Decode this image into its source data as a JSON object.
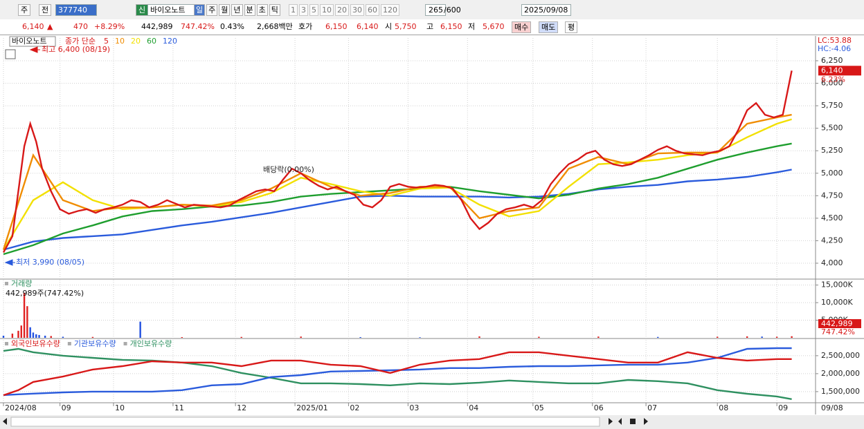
{
  "toolbar": {
    "view_type": "주",
    "prev": "전",
    "code": "377740",
    "name": "바이오노트",
    "new_badge": "신",
    "periods": [
      "일",
      "주",
      "월",
      "년",
      "분",
      "초",
      "틱"
    ],
    "intervals": [
      "1",
      "3",
      "5",
      "10",
      "20",
      "30",
      "60",
      "120"
    ],
    "count": "265",
    "max_count": "/600",
    "date": "2025/09/08"
  },
  "quote": {
    "price": "6,140",
    "arrow": "▲",
    "change": "470",
    "change_pct": "+8.29%",
    "volume": "442,989",
    "volume_ratio": "747.42%",
    "turnover": "0.43%",
    "amount": "2,668백만",
    "ask_label": "호가",
    "ask": "6,150",
    "bid": "6,140",
    "open_label": "시",
    "open": "5,750",
    "high_label": "고",
    "high": "6,150",
    "low_label": "저",
    "low": "5,670",
    "buy": "매수",
    "sell": "매도",
    "avg": "평"
  },
  "chart_data": [
    {
      "type": "line",
      "stock_name": "바이오노트",
      "legend_prefix": "종가 단순",
      "high_label": "최고 6,400 (08/19)",
      "low_label": "최저 3,990 (08/05)",
      "ex_dividend_label": "배당락(0.00%)",
      "lc_label": "LC:53.88",
      "hc_label": "HC:-4.06",
      "last_price": 6140,
      "last_price_label": "6,140",
      "last_change_label": "6.23%",
      "ylim": [
        3831,
        6503
      ],
      "yticks": [
        {
          "value": 4000,
          "label": "4,000"
        },
        {
          "value": 4250,
          "label": "4,250"
        },
        {
          "value": 4500,
          "label": "4,500"
        },
        {
          "value": 4750,
          "label": "4,750"
        },
        {
          "value": 5000,
          "label": "5,000"
        },
        {
          "value": 5250,
          "label": "5,250"
        },
        {
          "value": 5500,
          "label": "5,500"
        },
        {
          "value": 5750,
          "label": "5,750"
        },
        {
          "value": 6000,
          "label": "6,000"
        },
        {
          "value": 6250,
          "label": "6,250"
        }
      ],
      "x": [
        0,
        10,
        20,
        30,
        40,
        50,
        60,
        70,
        80,
        90,
        100,
        110,
        120,
        130,
        140,
        150,
        160,
        170,
        180,
        190,
        200,
        210,
        220,
        230,
        240,
        250,
        260,
        265
      ],
      "series": [
        {
          "name": "5",
          "color": "#d81818",
          "x": [
            0,
            3,
            5,
            7,
            9,
            11,
            13,
            16,
            19,
            22,
            25,
            28,
            31,
            34,
            37,
            40,
            43,
            46,
            49,
            52,
            55,
            58,
            61,
            64,
            67,
            70,
            73,
            76,
            79,
            82,
            85,
            88,
            91,
            94,
            97,
            100,
            103,
            106,
            109,
            112,
            115,
            118,
            121,
            124,
            127,
            130,
            133,
            136,
            139,
            142,
            145,
            148,
            151,
            154,
            157,
            160,
            163,
            166,
            169,
            172,
            175,
            178,
            181,
            184,
            187,
            190,
            193,
            196,
            199,
            202,
            205,
            208,
            211,
            214,
            217,
            220,
            223,
            226,
            229,
            232,
            235,
            238,
            241,
            244,
            247,
            250,
            253,
            256,
            259,
            262,
            265
          ],
          "values": [
            4120,
            4300,
            4800,
            5300,
            5550,
            5350,
            5050,
            4800,
            4600,
            4550,
            4580,
            4600,
            4560,
            4600,
            4620,
            4650,
            4700,
            4680,
            4620,
            4650,
            4700,
            4660,
            4620,
            4650,
            4640,
            4630,
            4620,
            4640,
            4700,
            4750,
            4800,
            4820,
            4800,
            4930,
            5050,
            5000,
            4920,
            4860,
            4820,
            4850,
            4800,
            4760,
            4650,
            4620,
            4700,
            4850,
            4880,
            4850,
            4840,
            4850,
            4870,
            4860,
            4830,
            4700,
            4500,
            4380,
            4450,
            4550,
            4600,
            4620,
            4650,
            4620,
            4700,
            4880,
            5000,
            5100,
            5150,
            5220,
            5250,
            5150,
            5100,
            5080,
            5100,
            5150,
            5200,
            5260,
            5300,
            5250,
            5220,
            5210,
            5200,
            5230,
            5250,
            5300,
            5480,
            5700,
            5780,
            5650,
            5620,
            5650,
            6140
          ]
        },
        {
          "name": "10",
          "color": "#f08c00",
          "values": [
            4150,
            5200,
            4700,
            4580,
            4620,
            4620,
            4650,
            4640,
            4700,
            4830,
            5000,
            4850,
            4750,
            4780,
            4850,
            4850,
            4500,
            4580,
            4620,
            5050,
            5180,
            5100,
            5220,
            5230,
            5230,
            5550,
            5620,
            5650
          ]
        },
        {
          "name": "20",
          "color": "#f2e000",
          "values": [
            4150,
            4700,
            4900,
            4700,
            4600,
            4620,
            4650,
            4630,
            4680,
            4780,
            4950,
            4880,
            4800,
            4750,
            4830,
            4840,
            4650,
            4520,
            4580,
            4850,
            5100,
            5120,
            5150,
            5200,
            5230,
            5400,
            5550,
            5600
          ]
        },
        {
          "name": "60",
          "color": "#1e9e2e",
          "values": [
            4100,
            4200,
            4330,
            4420,
            4520,
            4580,
            4600,
            4630,
            4640,
            4680,
            4740,
            4770,
            4790,
            4810,
            4830,
            4850,
            4800,
            4760,
            4720,
            4760,
            4830,
            4880,
            4950,
            5050,
            5150,
            5230,
            5300,
            5330
          ]
        },
        {
          "name": "120",
          "color": "#2a5bdc",
          "values": [
            4150,
            4240,
            4280,
            4300,
            4320,
            4370,
            4420,
            4460,
            4510,
            4560,
            4620,
            4680,
            4740,
            4750,
            4740,
            4740,
            4740,
            4730,
            4740,
            4770,
            4820,
            4850,
            4870,
            4910,
            4930,
            4960,
            5010,
            5040
          ]
        }
      ]
    },
    {
      "type": "bar",
      "title": "거래량",
      "info": "442,989주(747.42%)",
      "last_value_label": "442,989",
      "last_ratio_label": "747.42%",
      "ylim": [
        0,
        16500
      ],
      "yticks": [
        {
          "value": 5000,
          "label": "5,000K"
        },
        {
          "value": 10000,
          "label": "10,000K"
        },
        {
          "value": 15000,
          "label": "15,000K"
        }
      ],
      "x": [
        0,
        3,
        5,
        6,
        7,
        8,
        9,
        10,
        11,
        12,
        14,
        16,
        20,
        30,
        46,
        60,
        80,
        100,
        120,
        140,
        160,
        180,
        200,
        220,
        240,
        250,
        255,
        260,
        265
      ],
      "values": [
        600,
        1200,
        2000,
        3500,
        12800,
        9000,
        3000,
        1500,
        1000,
        800,
        600,
        500,
        300,
        250,
        4600,
        200,
        250,
        350,
        200,
        150,
        400,
        300,
        350,
        250,
        300,
        400,
        350,
        300,
        442.989
      ],
      "colors": [
        "#2050e0",
        "#e02020",
        "#e02020",
        "#e02020",
        "#e02020",
        "#e02020",
        "#2050e0",
        "#2050e0",
        "#2050e0",
        "#2050e0",
        "#2050e0",
        "#e02020",
        "#2050e0",
        "#e02020",
        "#2050e0",
        "#e02020",
        "#e02020",
        "#e02020",
        "#2050e0",
        "#2050e0",
        "#e02020",
        "#e02020",
        "#e02020",
        "#2050e0",
        "#e02020",
        "#e02020",
        "#2050e0",
        "#e02020",
        "#e02020"
      ]
    },
    {
      "type": "line",
      "ylim": [
        1210000,
        2940000
      ],
      "yticks": [
        {
          "value": 1500000,
          "label": "1,500,000"
        },
        {
          "value": 2000000,
          "label": "2,000,000"
        },
        {
          "value": 2500000,
          "label": "2,500,000"
        }
      ],
      "xlim": [
        0,
        273
      ],
      "xticks": [
        {
          "value": 0,
          "label": "2024/08"
        },
        {
          "value": 19,
          "label": "09"
        },
        {
          "value": 37,
          "label": "10"
        },
        {
          "value": 57,
          "label": "11"
        },
        {
          "value": 78,
          "label": "12"
        },
        {
          "value": 98,
          "label": "2025/01"
        },
        {
          "value": 116,
          "label": "02"
        },
        {
          "value": 136,
          "label": "03"
        },
        {
          "value": 156,
          "label": "04"
        },
        {
          "value": 178,
          "label": "05"
        },
        {
          "value": 198,
          "label": "06"
        },
        {
          "value": 216,
          "label": "07"
        },
        {
          "value": 240,
          "label": "08"
        },
        {
          "value": 260,
          "label": "09"
        }
      ],
      "x_end_label": "09/08",
      "x": [
        0,
        5,
        10,
        20,
        30,
        40,
        50,
        60,
        70,
        80,
        90,
        100,
        110,
        120,
        130,
        140,
        150,
        160,
        170,
        180,
        190,
        200,
        210,
        220,
        230,
        240,
        250,
        260,
        265
      ],
      "series": [
        {
          "name": "외국인보유수량",
          "color": "#d81818",
          "values": [
            1400000,
            1540000,
            1770000,
            1920000,
            2115000,
            2210000,
            2345000,
            2310000,
            2310000,
            2210000,
            2365000,
            2365000,
            2250000,
            2210000,
            2020000,
            2250000,
            2365000,
            2405000,
            2595000,
            2595000,
            2500000,
            2405000,
            2310000,
            2310000,
            2595000,
            2440000,
            2365000,
            2405000,
            2405000
          ]
        },
        {
          "name": "기관보유수량",
          "color": "#2a5bdc",
          "values": [
            1405000,
            1425000,
            1445000,
            1480000,
            1500000,
            1500000,
            1500000,
            1540000,
            1675000,
            1710000,
            1905000,
            1960000,
            2060000,
            2075000,
            2095000,
            2115000,
            2155000,
            2155000,
            2190000,
            2210000,
            2210000,
            2230000,
            2250000,
            2250000,
            2310000,
            2440000,
            2690000,
            2710000,
            2710000
          ]
        },
        {
          "name": "개인보유수량",
          "color": "#2e9060",
          "values": [
            2635000,
            2690000,
            2595000,
            2500000,
            2440000,
            2385000,
            2365000,
            2310000,
            2210000,
            2020000,
            1885000,
            1730000,
            1730000,
            1710000,
            1675000,
            1730000,
            1710000,
            1750000,
            1810000,
            1770000,
            1730000,
            1730000,
            1825000,
            1790000,
            1730000,
            1540000,
            1440000,
            1365000,
            1290000
          ]
        }
      ]
    }
  ]
}
